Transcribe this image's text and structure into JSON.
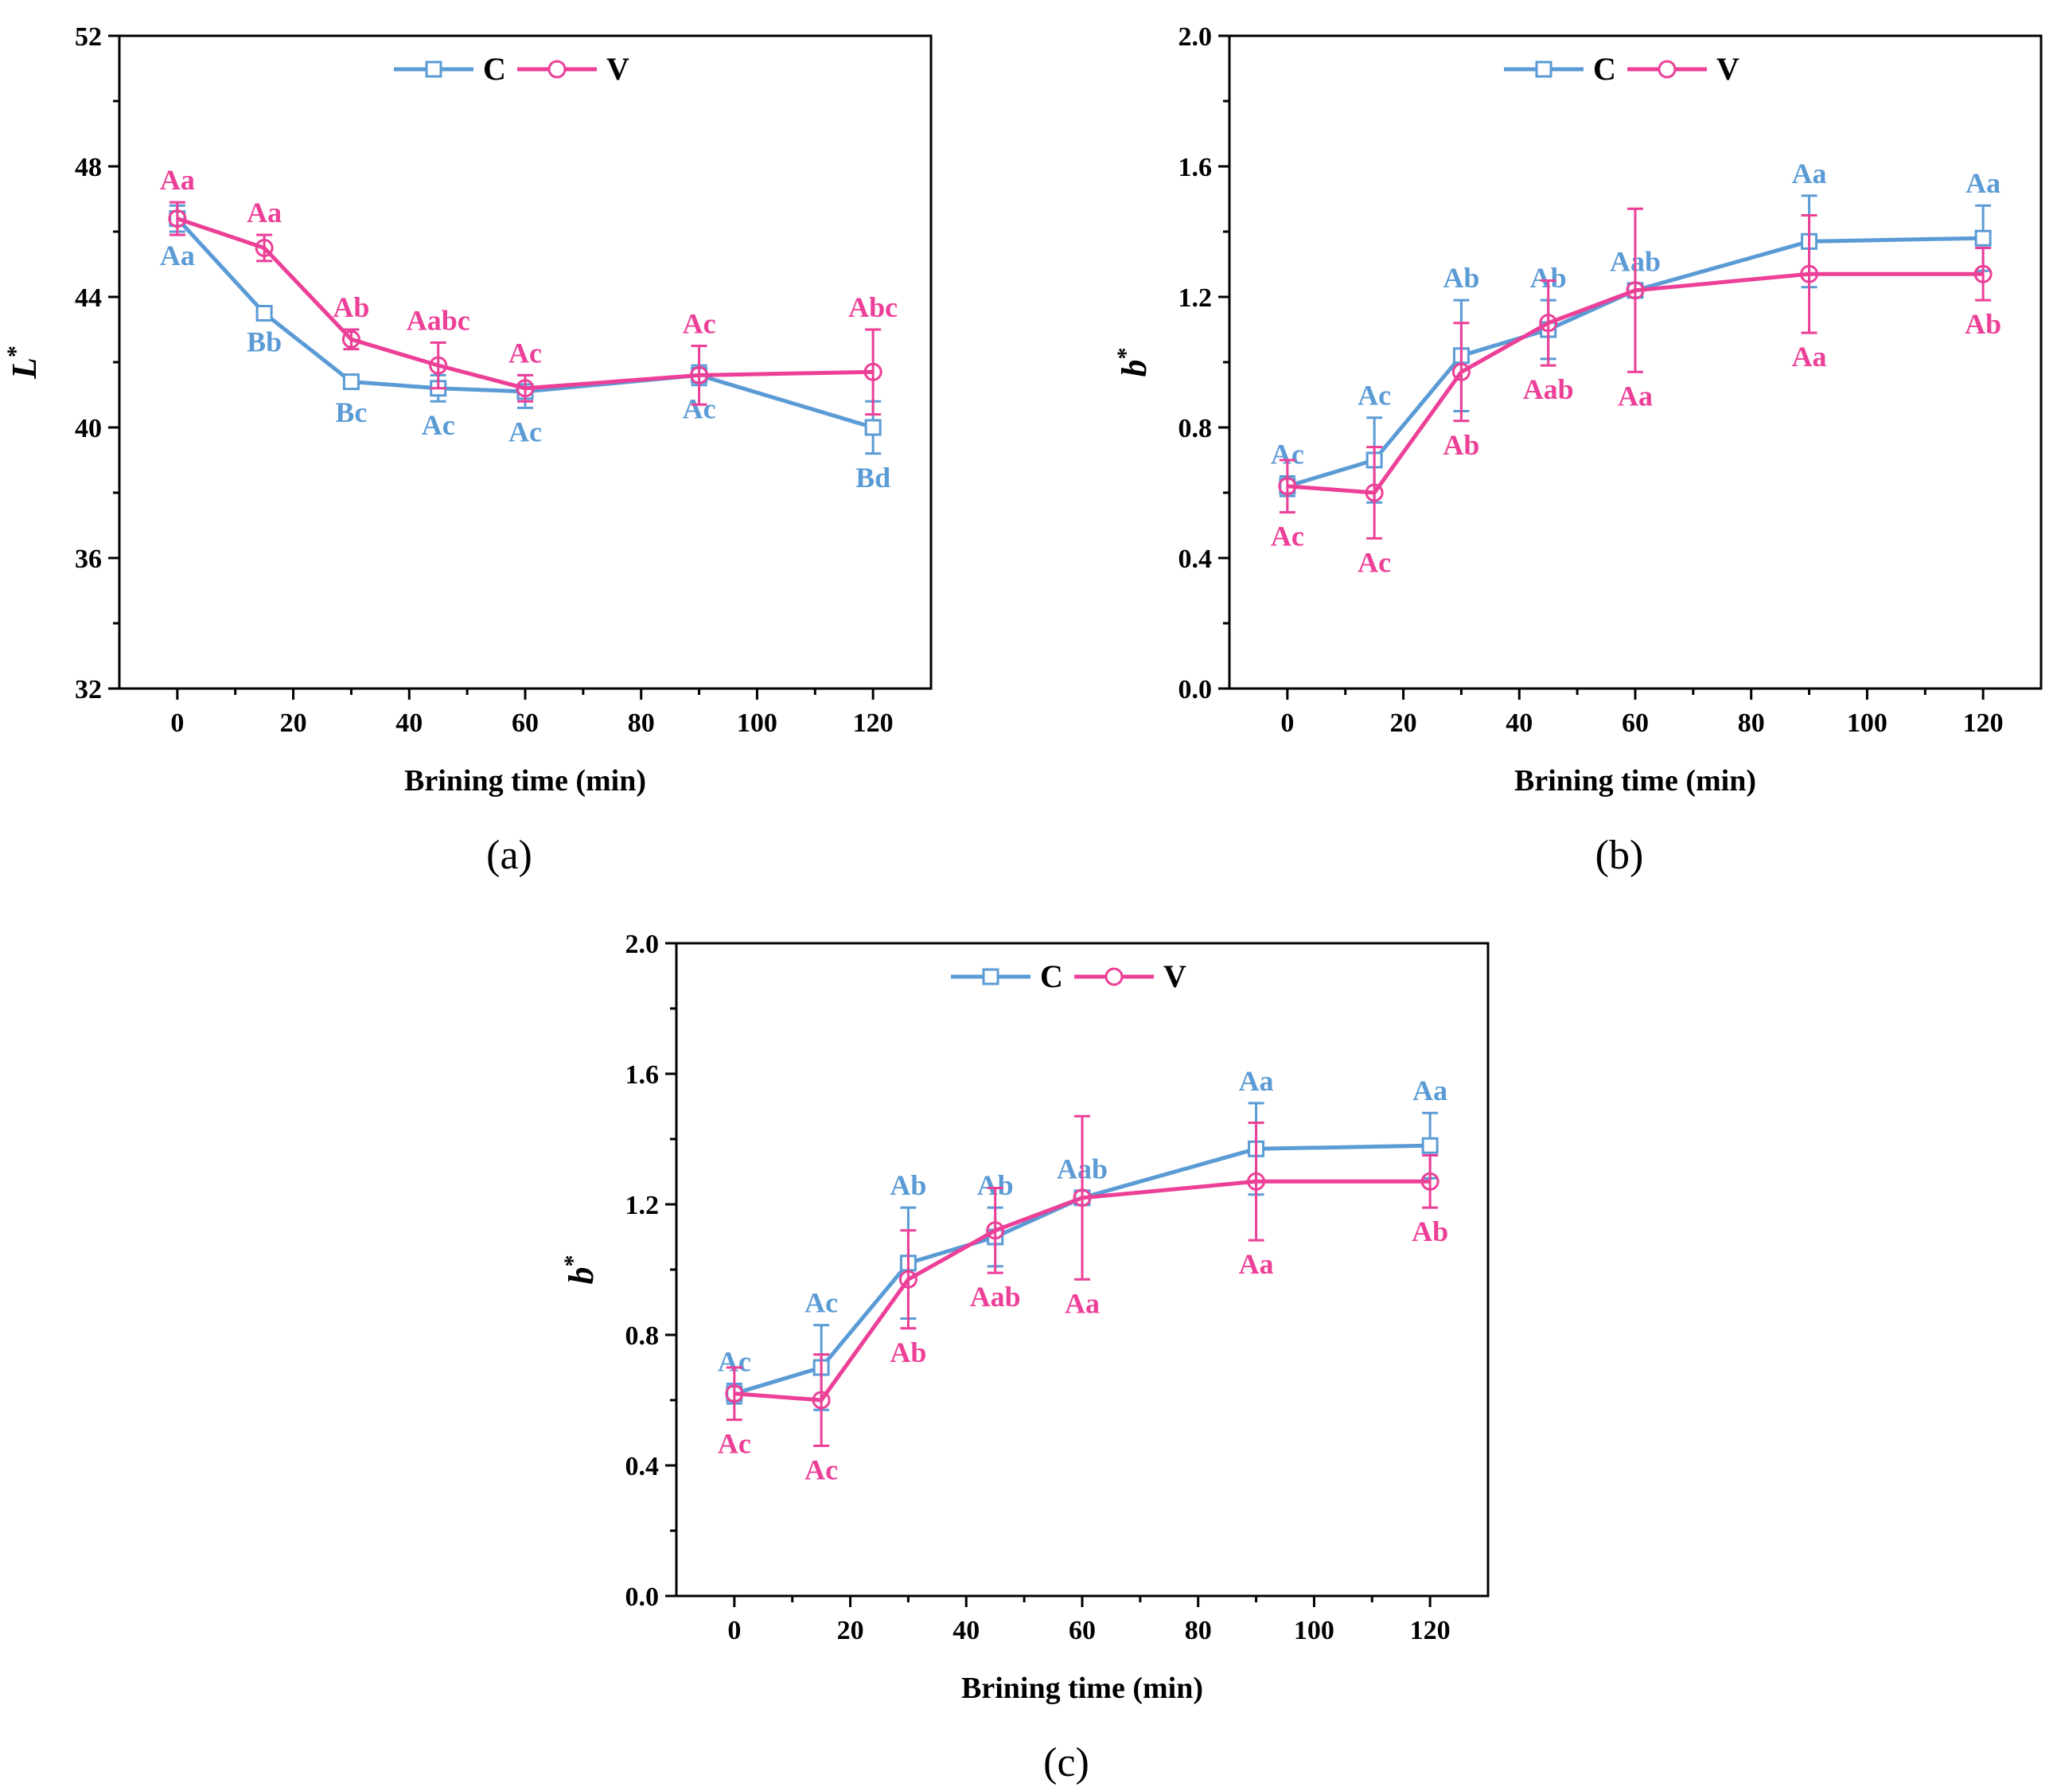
{
  "colors": {
    "C": "#5B9BD5",
    "V": "#EC3F97"
  },
  "chart_data": [
    {
      "id": "a",
      "type": "line",
      "caption": "(a)",
      "xlabel": "Brining time (min)",
      "ylabel": "L",
      "ylabel_sup": "*",
      "xlim": [
        -10,
        130
      ],
      "ylim": [
        32,
        52
      ],
      "xticks": [
        0,
        20,
        40,
        60,
        80,
        100,
        120
      ],
      "yticks": [
        32,
        36,
        40,
        44,
        48,
        52
      ],
      "y_decimals": 0,
      "legend": "top-center",
      "x": [
        0,
        15,
        30,
        45,
        60,
        90,
        120
      ],
      "series": [
        {
          "name": "C",
          "color": "#5B9BD5",
          "marker": "square",
          "values": [
            46.4,
            43.5,
            41.4,
            41.2,
            41.1,
            41.6,
            40.0
          ],
          "errors": [
            0.4,
            0.15,
            0.2,
            0.4,
            0.5,
            0.3,
            0.8
          ],
          "labels": [
            "Aa",
            "Bb",
            "Bc",
            "Ac",
            "Ac",
            "Ac",
            "Bd"
          ],
          "label_pos": [
            "below",
            "below",
            "below",
            "below",
            "below",
            "below",
            "below"
          ]
        },
        {
          "name": "V",
          "color": "#EC3F97",
          "marker": "circle",
          "values": [
            46.4,
            45.5,
            42.7,
            41.9,
            41.2,
            41.6,
            41.7
          ],
          "errors": [
            0.5,
            0.4,
            0.3,
            0.7,
            0.4,
            0.9,
            1.3
          ],
          "labels": [
            "Aa",
            "Aa",
            "Ab",
            "Aabc",
            "Ac",
            "Ac",
            "Abc"
          ],
          "label_pos": [
            "above",
            "above",
            "above",
            "above",
            "above",
            "above",
            "above"
          ]
        }
      ]
    },
    {
      "id": "b",
      "type": "line",
      "caption": "(b)",
      "xlabel": "Brining time (min)",
      "ylabel": "b",
      "ylabel_sup": "*",
      "xlim": [
        -10,
        130
      ],
      "ylim": [
        0,
        2.0
      ],
      "xticks": [
        0,
        20,
        40,
        60,
        80,
        100,
        120
      ],
      "yticks": [
        0,
        0.4,
        0.8,
        1.2,
        1.6,
        2.0
      ],
      "y_decimals": 1,
      "legend": "top-center",
      "x": [
        0,
        15,
        30,
        45,
        60,
        90,
        120
      ],
      "series": [
        {
          "name": "C",
          "color": "#5B9BD5",
          "marker": "square",
          "values": [
            0.62,
            0.7,
            1.02,
            1.1,
            1.22,
            1.37,
            1.38
          ],
          "errors": [
            0.03,
            0.13,
            0.17,
            0.09,
            0.02,
            0.14,
            0.1
          ],
          "labels": [
            "Ac",
            "Ac",
            "Ab",
            "Ab",
            "Aab",
            "Aa",
            "Aa"
          ],
          "label_pos": [
            "above",
            "above",
            "above",
            "above",
            "above",
            "above",
            "above"
          ]
        },
        {
          "name": "V",
          "color": "#EC3F97",
          "marker": "circle",
          "values": [
            0.62,
            0.6,
            0.97,
            1.12,
            1.22,
            1.27,
            1.27
          ],
          "errors": [
            0.08,
            0.14,
            0.15,
            0.13,
            0.25,
            0.18,
            0.08
          ],
          "labels": [
            "Ac",
            "Ac",
            "Ab",
            "Aab",
            "Aa",
            "Aa",
            "Ab"
          ],
          "label_pos": [
            "below",
            "below",
            "below",
            "below",
            "below",
            "below",
            "below"
          ]
        }
      ]
    },
    {
      "id": "c",
      "type": "line",
      "caption": "(c)",
      "xlabel": "Brining time (min)",
      "ylabel": "b",
      "ylabel_sup": "*",
      "xlim": [
        -10,
        130
      ],
      "ylim": [
        0,
        2.0
      ],
      "xticks": [
        0,
        20,
        40,
        60,
        80,
        100,
        120
      ],
      "yticks": [
        0,
        0.4,
        0.8,
        1.2,
        1.6,
        2.0
      ],
      "y_decimals": 1,
      "legend": "top-center",
      "x": [
        0,
        15,
        30,
        45,
        60,
        90,
        120
      ],
      "series": [
        {
          "name": "C",
          "color": "#5B9BD5",
          "marker": "square",
          "values": [
            0.62,
            0.7,
            1.02,
            1.1,
            1.22,
            1.37,
            1.38
          ],
          "errors": [
            0.03,
            0.13,
            0.17,
            0.09,
            0.02,
            0.14,
            0.1
          ],
          "labels": [
            "Ac",
            "Ac",
            "Ab",
            "Ab",
            "Aab",
            "Aa",
            "Aa"
          ],
          "label_pos": [
            "above",
            "above",
            "above",
            "above",
            "above",
            "above",
            "above"
          ]
        },
        {
          "name": "V",
          "color": "#EC3F97",
          "marker": "circle",
          "values": [
            0.62,
            0.6,
            0.97,
            1.12,
            1.22,
            1.27,
            1.27
          ],
          "errors": [
            0.08,
            0.14,
            0.15,
            0.13,
            0.25,
            0.18,
            0.08
          ],
          "labels": [
            "Ac",
            "Ac",
            "Ab",
            "Aab",
            "Aa",
            "Aa",
            "Ab"
          ],
          "label_pos": [
            "below",
            "below",
            "below",
            "below",
            "below",
            "below",
            "below"
          ]
        }
      ]
    }
  ]
}
